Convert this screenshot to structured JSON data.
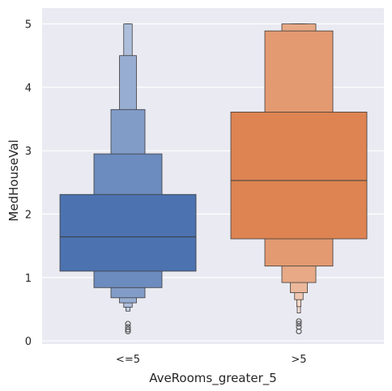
{
  "chart_data": {
    "type": "boxenplot",
    "xlabel": "AveRooms_greater_5",
    "ylabel": "MedHouseVal",
    "ylim": [
      -0.05,
      5.25
    ],
    "yticks": [
      0,
      1,
      2,
      3,
      4,
      5
    ],
    "grid": true,
    "categories": [
      "<=5",
      ">5"
    ],
    "colors": [
      "#4c72b0",
      "#dd8452"
    ],
    "background": "#eaeaf2",
    "series": [
      {
        "category": "<=5",
        "median": 1.64,
        "boxes": [
          {
            "low": 1.1,
            "high": 2.31
          },
          {
            "low": 0.84,
            "high": 2.95
          },
          {
            "low": 0.68,
            "high": 3.65
          },
          {
            "low": 0.6,
            "high": 4.5
          },
          {
            "low": 0.53,
            "high": 5.0
          },
          {
            "low": 0.47,
            "high": 5.0
          }
        ],
        "outliers": [
          0.27,
          0.22,
          0.18,
          0.15
        ]
      },
      {
        "category": ">5",
        "median": 2.53,
        "boxes": [
          {
            "low": 1.61,
            "high": 3.61
          },
          {
            "low": 1.18,
            "high": 4.89
          },
          {
            "low": 0.92,
            "high": 5.0
          },
          {
            "low": 0.76,
            "high": 5.0
          },
          {
            "low": 0.65,
            "high": 5.0
          },
          {
            "low": 0.54,
            "high": 5.0
          },
          {
            "low": 0.44,
            "high": 5.0
          }
        ],
        "outliers": [
          0.31,
          0.27,
          0.22,
          0.15
        ]
      }
    ]
  }
}
